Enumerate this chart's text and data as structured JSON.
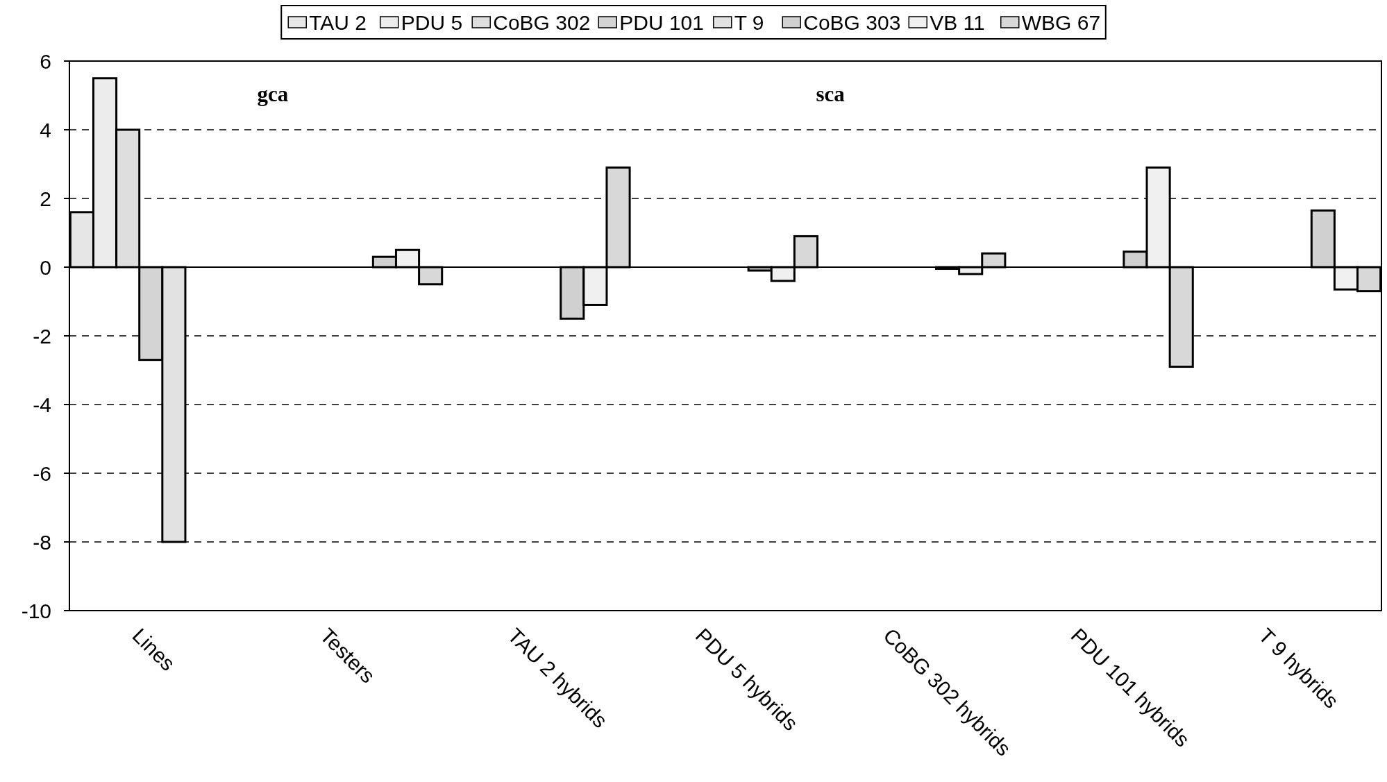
{
  "chart_data": {
    "type": "bar",
    "categories": [
      "Lines",
      "Testers",
      "TAU 2 hybrids",
      "PDU 5 hybrids",
      "CoBG 302  hybrids",
      "PDU 101 hybrids",
      "T 9 hybrids"
    ],
    "series": [
      {
        "name": "TAU 2",
        "color": "#e6e6e6",
        "values": [
          1.6,
          null,
          null,
          null,
          null,
          null,
          null
        ]
      },
      {
        "name": "PDU 5",
        "color": "#ececec",
        "values": [
          5.5,
          null,
          null,
          null,
          null,
          null,
          null
        ]
      },
      {
        "name": "CoBG 302",
        "color": "#dedede",
        "values": [
          4.0,
          null,
          null,
          null,
          null,
          null,
          null
        ]
      },
      {
        "name": "PDU 101",
        "color": "#d4d4d4",
        "values": [
          -2.7,
          null,
          null,
          null,
          null,
          null,
          null
        ]
      },
      {
        "name": "T 9",
        "color": "#e2e2e2",
        "values": [
          -8.0,
          null,
          null,
          null,
          null,
          null,
          null
        ]
      },
      {
        "name": "CoBG 303",
        "color": "#d0d0d0",
        "values": [
          null,
          0.3,
          -1.5,
          -0.1,
          -0.05,
          0.45,
          1.65
        ]
      },
      {
        "name": "VB 11",
        "color": "#f0f0f0",
        "values": [
          null,
          0.5,
          -1.1,
          -0.4,
          -0.2,
          2.9,
          -0.65
        ]
      },
      {
        "name": "WBG 67",
        "color": "#d8d8d8",
        "values": [
          null,
          -0.5,
          2.9,
          0.9,
          0.4,
          -2.9,
          -0.7
        ]
      }
    ],
    "ylim": [
      -10,
      6
    ],
    "yticks": [
      -10,
      -8,
      -6,
      -4,
      -2,
      0,
      2,
      4,
      6
    ],
    "grid": "y",
    "legend": "top",
    "annotations": [
      "gca",
      "sca"
    ]
  }
}
